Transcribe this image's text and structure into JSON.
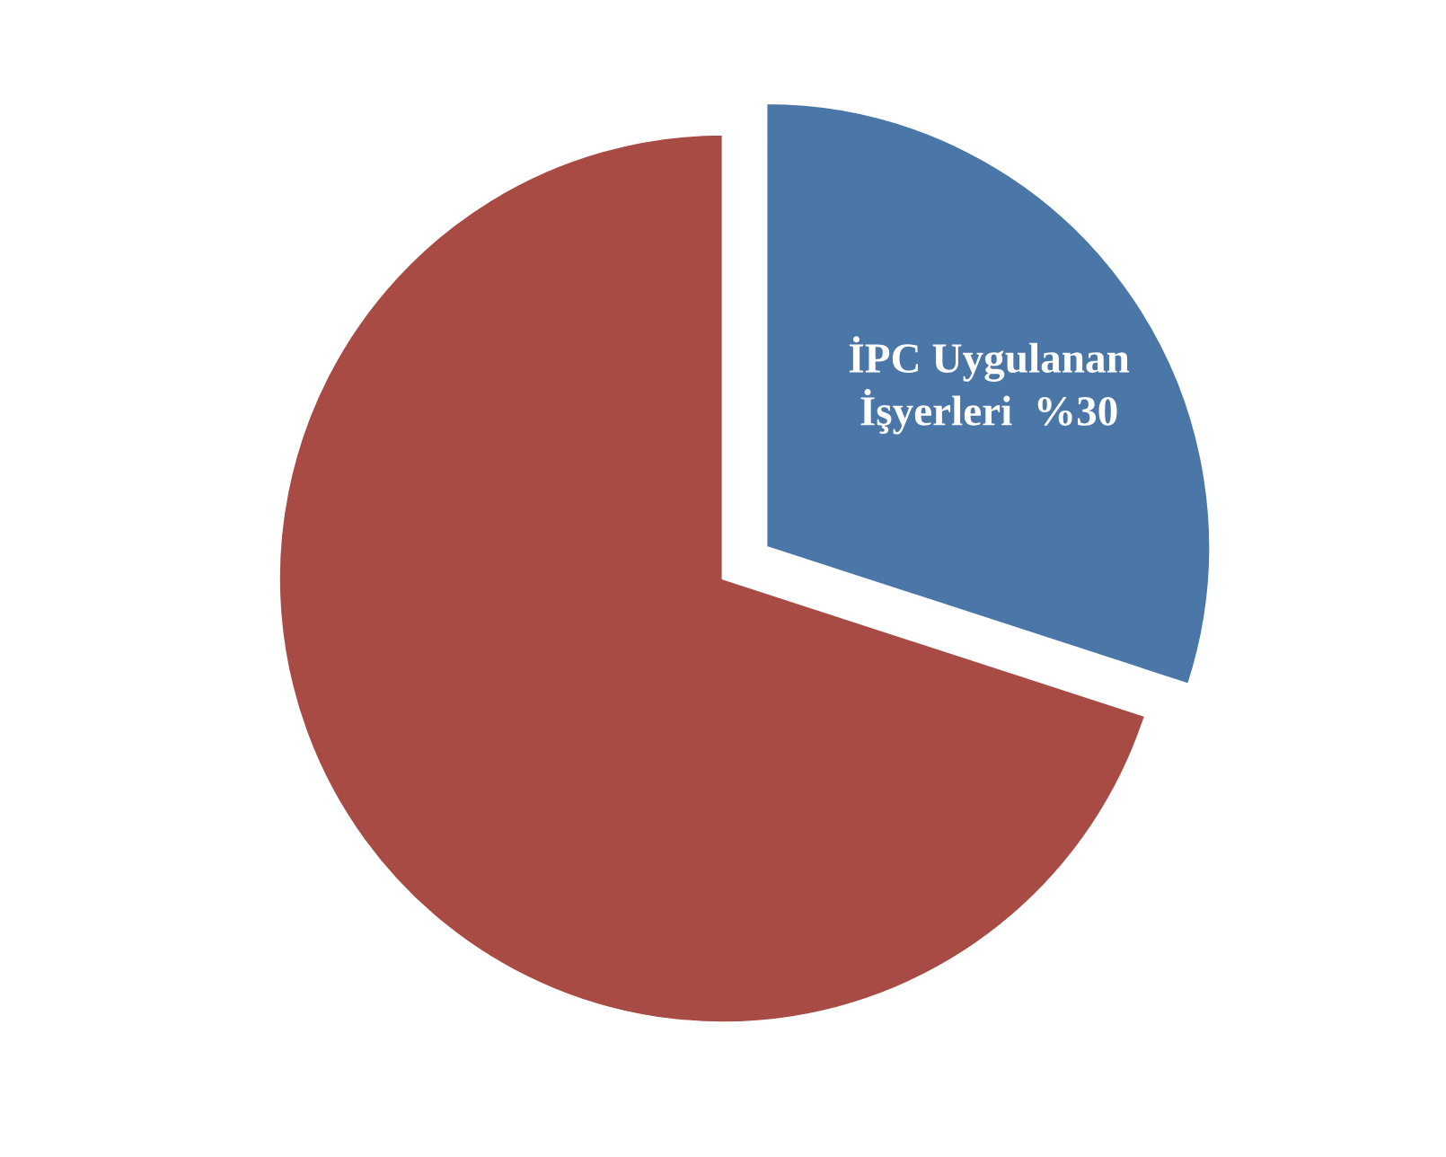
{
  "chart_data": {
    "type": "pie",
    "categories": [
      "İPC Uygulanan İşyerleri",
      null
    ],
    "values": [
      30,
      70
    ],
    "value_labels": [
      "%30",
      null
    ],
    "colors": [
      "#4a76a8",
      "#a84b45"
    ]
  }
}
